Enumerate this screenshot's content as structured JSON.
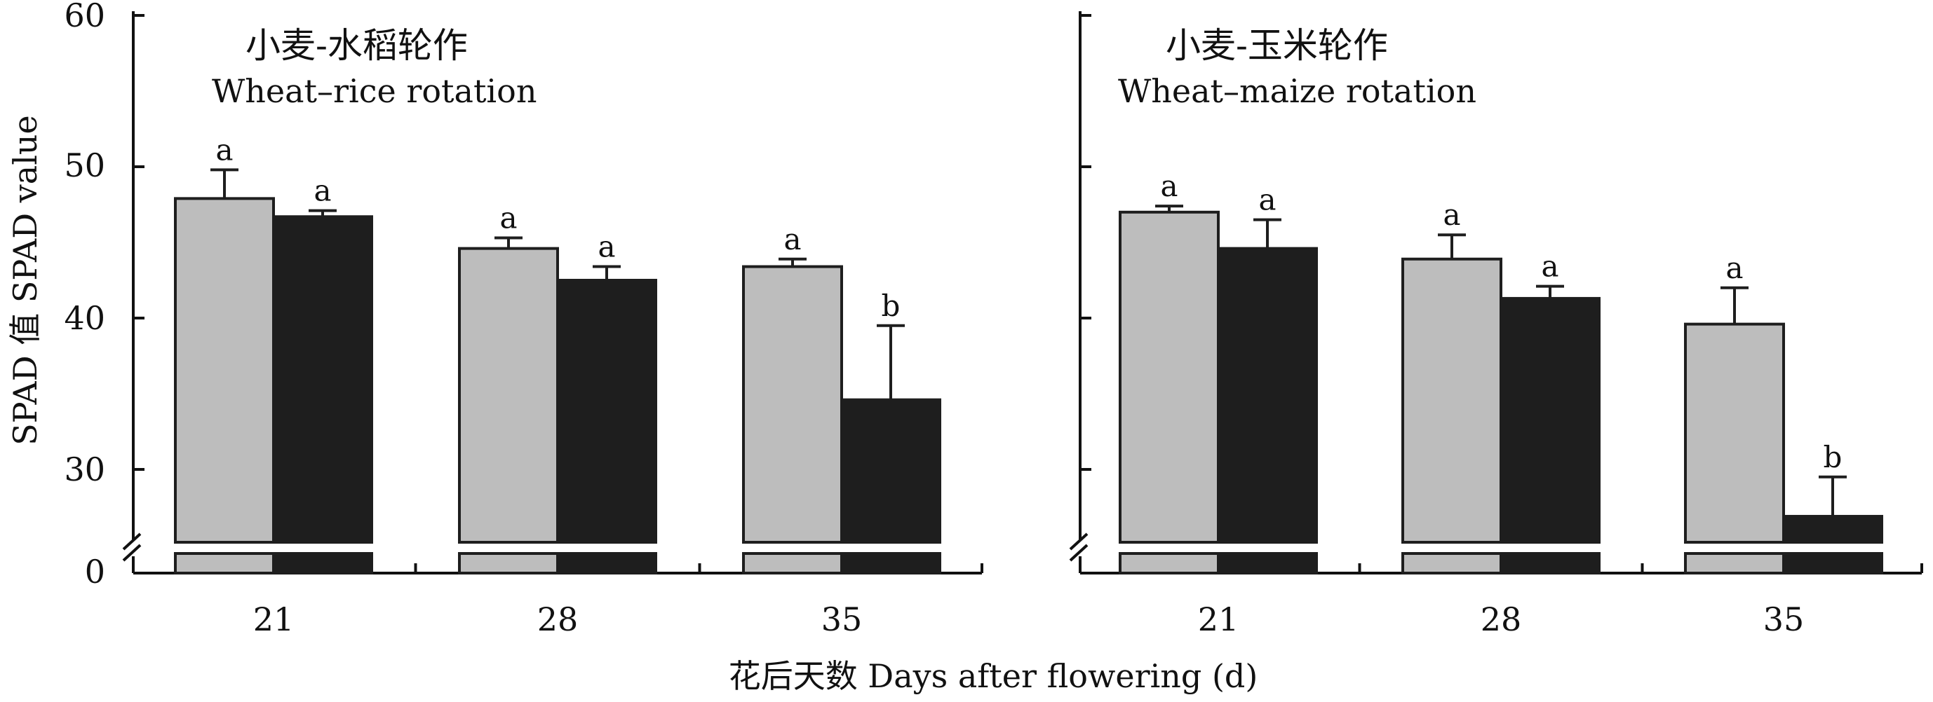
{
  "figure": {
    "ylabel": "SPAD 值 SPAD value",
    "xlabel": "花后天数 Days after flowering (d)",
    "y_ticks": [
      "0",
      "30",
      "40",
      "50",
      "60"
    ],
    "colors": {
      "series_1": "#bdbdbd",
      "series_2": "#1e1e1e",
      "axis": "#111111"
    }
  },
  "chart_data": [
    {
      "type": "bar",
      "title": "小麦-水稻轮作",
      "subtitle": "Wheat–rice rotation",
      "categories": [
        "21",
        "28",
        "35"
      ],
      "ylim": [
        0,
        60
      ],
      "axis_break": [
        0,
        25
      ],
      "series": [
        {
          "color": "#bdbdbd",
          "values": [
            47.9,
            44.6,
            43.4
          ],
          "errors": [
            1.9,
            0.7,
            0.5
          ],
          "labels": [
            "a",
            "a",
            "a"
          ]
        },
        {
          "color": "#1e1e1e",
          "values": [
            46.7,
            42.5,
            34.6
          ],
          "errors": [
            0.4,
            0.9,
            4.9
          ],
          "labels": [
            "a",
            "a",
            "b"
          ]
        }
      ]
    },
    {
      "type": "bar",
      "title": "小麦-玉米轮作",
      "subtitle": "Wheat–maize rotation",
      "categories": [
        "21",
        "28",
        "35"
      ],
      "ylim": [
        0,
        60
      ],
      "axis_break": [
        0,
        25
      ],
      "series": [
        {
          "color": "#bdbdbd",
          "values": [
            47.0,
            43.9,
            39.6
          ],
          "errors": [
            0.4,
            1.6,
            2.4
          ],
          "labels": [
            "a",
            "a",
            "a"
          ]
        },
        {
          "color": "#1e1e1e",
          "values": [
            44.6,
            41.3,
            26.9
          ],
          "errors": [
            1.9,
            0.8,
            2.6
          ],
          "labels": [
            "a",
            "a",
            "b"
          ]
        }
      ]
    }
  ]
}
